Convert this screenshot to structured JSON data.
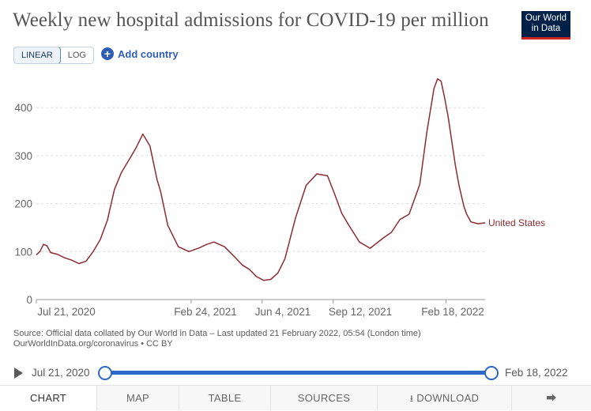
{
  "header": {
    "title": "Weekly new hospital admissions for COVID-19 per million",
    "logo_line1": "Our World",
    "logo_line2": "in Data"
  },
  "controls": {
    "scale_linear": "LINEAR",
    "scale_log": "LOG",
    "add_country": "Add country"
  },
  "chart_data": {
    "type": "line",
    "title": "Weekly new hospital admissions for COVID-19 per million",
    "xlabel": "",
    "ylabel": "",
    "ylim": [
      0,
      470
    ],
    "yticks": [
      0,
      100,
      200,
      300,
      400
    ],
    "xtick_labels": [
      "Jul 21, 2020",
      "Feb 24, 2021",
      "Jun 4, 2021",
      "Sep 12, 2021",
      "Feb 18, 2022"
    ],
    "series": [
      {
        "name": "United States",
        "color": "#8c2c32",
        "x_days": [
          0,
          5,
          10,
          15,
          20,
          30,
          40,
          50,
          60,
          70,
          80,
          90,
          100,
          110,
          120,
          130,
          140,
          150,
          160,
          170,
          175,
          185,
          200,
          215,
          230,
          240,
          250,
          265,
          280,
          290,
          300,
          310,
          320,
          330,
          340,
          350,
          365,
          380,
          395,
          410,
          420,
          430,
          440,
          455,
          470,
          490,
          500,
          512,
          525,
          540,
          550,
          560,
          565,
          570,
          575,
          580,
          585,
          590,
          595,
          602,
          606,
          612,
          622,
          632
        ],
        "values": [
          93,
          100,
          115,
          112,
          98,
          94,
          87,
          82,
          75,
          80,
          100,
          125,
          165,
          230,
          265,
          290,
          315,
          345,
          320,
          250,
          225,
          155,
          110,
          100,
          108,
          115,
          120,
          110,
          88,
          72,
          63,
          48,
          40,
          42,
          55,
          85,
          170,
          238,
          262,
          258,
          220,
          180,
          155,
          120,
          107,
          130,
          140,
          167,
          178,
          240,
          350,
          440,
          460,
          455,
          420,
          380,
          330,
          280,
          240,
          195,
          178,
          162,
          158,
          160
        ]
      }
    ]
  },
  "source": {
    "line1": "Source: Official data collated by Our World in Data – Last updated 21 February 2022, 05:54 (London time)",
    "line2": "OurWorldInData.org/coronavirus • CC BY"
  },
  "timeline": {
    "start": "Jul 21, 2020",
    "end": "Feb 18, 2022"
  },
  "tabs": [
    "CHART",
    "MAP",
    "TABLE",
    "SOURCES",
    "DOWNLOAD"
  ]
}
